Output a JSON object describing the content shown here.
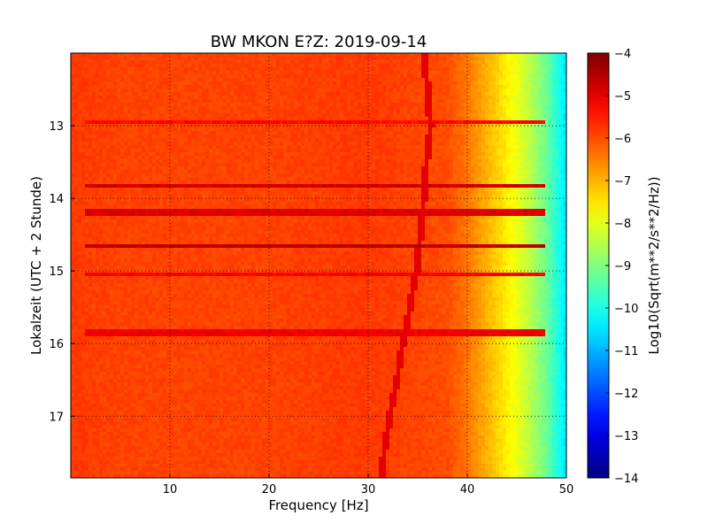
{
  "chart_data": {
    "type": "heatmap",
    "title": "BW MKON E?Z: 2019-09-14",
    "xlabel": "Frequency [Hz]",
    "ylabel": "Lokalzeit (UTC + 2 Stunde)",
    "xlim": [
      0,
      50
    ],
    "ylim": [
      17.85,
      12.0
    ],
    "y_axis_inverted": true,
    "x_ticks": [
      10,
      20,
      30,
      40,
      50
    ],
    "y_ticks": [
      13,
      14,
      15,
      16,
      17
    ],
    "grid": true,
    "colormap": "jet",
    "colorbar": {
      "label": "Log10(Sqrt(m**2/s**2/Hz))",
      "min": -14,
      "max": -4,
      "ticks": [
        -4,
        -5,
        -6,
        -7,
        -8,
        -9,
        -10,
        -11,
        -12,
        -13,
        -14
      ]
    },
    "background_level_by_frequency": {
      "frequency_hz": [
        0,
        5,
        10,
        20,
        30,
        38,
        40,
        42,
        44,
        46,
        48,
        49.5,
        50
      ],
      "level": [
        -5.8,
        -5.9,
        -5.9,
        -5.9,
        -5.8,
        -6.0,
        -6.4,
        -7.0,
        -7.6,
        -8.3,
        -9.2,
        -10.2,
        -10.5
      ]
    },
    "bands": [
      {
        "time": 12.95,
        "level": -5.3
      },
      {
        "time": 13.83,
        "level": -4.8
      },
      {
        "time": 14.19,
        "level": -4.9
      },
      {
        "time": 14.65,
        "level": -4.6
      },
      {
        "time": 15.05,
        "level": -5.2
      },
      {
        "time": 15.84,
        "level": -5.1
      }
    ],
    "drifting_line": {
      "time": [
        12.0,
        12.5,
        13.0,
        13.5,
        14.0,
        14.5,
        15.0,
        15.5,
        16.0,
        16.5,
        17.0,
        17.5,
        17.85
      ],
      "frequency_hz": [
        35.6,
        36.0,
        36.3,
        35.9,
        35.6,
        35.3,
        34.9,
        34.2,
        33.5,
        32.9,
        32.2,
        31.6,
        31.3
      ],
      "level": -5.0
    }
  }
}
